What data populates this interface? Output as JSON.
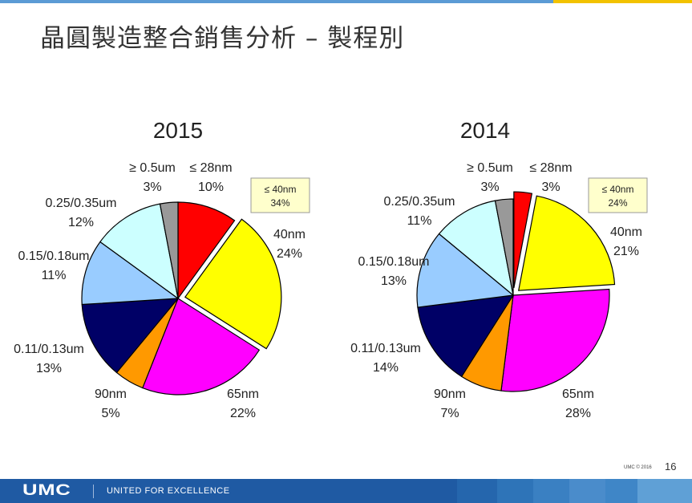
{
  "slide": {
    "title": "晶圓製造整合銷售分析 – 製程別",
    "footer_logo": "UMC",
    "footer_tagline": "UNITED FOR EXCELLENCE",
    "copyright": "UMC © 2016",
    "page_number": "16"
  },
  "chart_data": [
    {
      "type": "pie",
      "title": "2015",
      "slices": [
        {
          "label": "≤ 28nm",
          "value": 10,
          "color": "#ff0000"
        },
        {
          "label": "40nm",
          "value": 24,
          "color": "#ffff00",
          "exploded": true
        },
        {
          "label": "65nm",
          "value": 22,
          "color": "#ff00ff"
        },
        {
          "label": "90nm",
          "value": 5,
          "color": "#ff9900"
        },
        {
          "label": "0.11/0.13um",
          "value": 13,
          "color": "#000066"
        },
        {
          "label": "0.15/0.18um",
          "value": 11,
          "color": "#99ccff"
        },
        {
          "label": "0.25/0.35um",
          "value": 12,
          "color": "#ccffff"
        },
        {
          "label": "≥ 0.5um",
          "value": 3,
          "color": "#999999"
        }
      ],
      "callout": {
        "label": "≤ 40nm",
        "value": "34%"
      }
    },
    {
      "type": "pie",
      "title": "2014",
      "slices": [
        {
          "label": "≤ 28nm",
          "value": 3,
          "color": "#ff0000",
          "exploded": true
        },
        {
          "label": "40nm",
          "value": 21,
          "color": "#ffff00",
          "exploded": true
        },
        {
          "label": "65nm",
          "value": 28,
          "color": "#ff00ff"
        },
        {
          "label": "90nm",
          "value": 7,
          "color": "#ff9900"
        },
        {
          "label": "0.11/0.13um",
          "value": 14,
          "color": "#000066"
        },
        {
          "label": "0.15/0.18um",
          "value": 13,
          "color": "#99ccff"
        },
        {
          "label": "0.25/0.35um",
          "value": 11,
          "color": "#ccffff"
        },
        {
          "label": "≥ 0.5um",
          "value": 3,
          "color": "#999999"
        }
      ],
      "callout": {
        "label": "≤ 40nm",
        "value": "24%"
      }
    }
  ]
}
